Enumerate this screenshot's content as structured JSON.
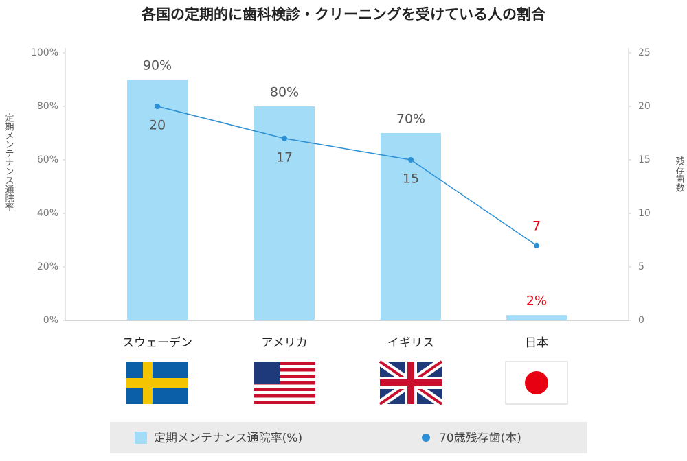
{
  "chart_data": {
    "type": "bar_line",
    "title": "各国の定期的に歯科検診・クリーニングを受けている人の割合",
    "y_label": "定期メンテナンス通院率",
    "y2_label": "残存歯数",
    "categories": [
      "スウェーデン",
      "アメリカ",
      "イギリス",
      "日本"
    ],
    "series": [
      {
        "name": "定期メンテナンス通院率(%)",
        "type": "bar",
        "color": "#a3dcf6",
        "values": [
          90,
          80,
          70,
          2
        ],
        "value_labels": [
          "90%",
          "80%",
          "70%",
          "2%"
        ],
        "label_colors": [
          "#555555",
          "#555555",
          "#555555",
          "#e60012"
        ]
      },
      {
        "name": "70歳残存歯(本)",
        "type": "line",
        "axis": "y2",
        "color": "#2b8fd6",
        "values": [
          20,
          17,
          15,
          7
        ],
        "label_colors": [
          "#555555",
          "#555555",
          "#555555",
          "#e60012"
        ]
      }
    ],
    "ylim": [
      0,
      100
    ],
    "yticks": [
      {
        "value": 0,
        "label": "0%"
      },
      {
        "value": 20,
        "label": "20%"
      },
      {
        "value": 40,
        "label": "40%"
      },
      {
        "value": 60,
        "label": "60%"
      },
      {
        "value": 80,
        "label": "80%"
      },
      {
        "value": 100,
        "label": "100%"
      }
    ],
    "y2lim": [
      0,
      25
    ],
    "y2ticks": [
      0,
      5,
      10,
      15,
      20,
      25
    ]
  }
}
